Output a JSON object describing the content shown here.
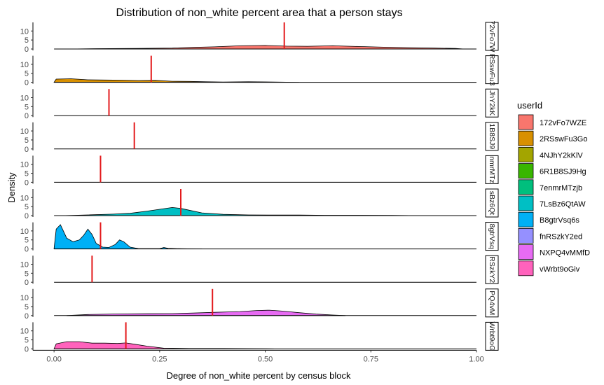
{
  "chart_data": {
    "type": "area",
    "title": "Distribution of non_white percent area that a person stays",
    "xlabel": "Degree of non_white percent by census block",
    "ylabel": "Density",
    "xlim": [
      -0.05,
      1.0
    ],
    "ylim": [
      0,
      14
    ],
    "x_ticks": [
      0.0,
      0.25,
      0.5,
      0.75,
      1.0
    ],
    "x_tick_labels": [
      "0.00",
      "0.25",
      "0.50",
      "0.75",
      "1.00"
    ],
    "y_ticks": [
      0,
      5,
      10
    ],
    "y_tick_labels": [
      "0",
      "5",
      "10"
    ],
    "legend": {
      "title": "userId",
      "position": "right"
    },
    "strip_position": "right",
    "mean_line_color": "#e31a1c",
    "series": [
      {
        "name": "172vFo7WZE",
        "strip": "72vFo7W",
        "color": "#F8766D",
        "mean": 0.545,
        "points": [
          [
            0.04,
            0
          ],
          [
            0.1,
            0.2
          ],
          [
            0.2,
            0.3
          ],
          [
            0.28,
            0.5
          ],
          [
            0.33,
            0.9
          ],
          [
            0.38,
            1.2
          ],
          [
            0.44,
            1.8
          ],
          [
            0.5,
            2.0
          ],
          [
            0.55,
            1.6
          ],
          [
            0.6,
            1.5
          ],
          [
            0.66,
            1.8
          ],
          [
            0.72,
            1.4
          ],
          [
            0.78,
            1.0
          ],
          [
            0.84,
            0.7
          ],
          [
            0.9,
            0.5
          ],
          [
            0.95,
            0.3
          ],
          [
            0.97,
            0
          ]
        ]
      },
      {
        "name": "2RSswFu3Go",
        "strip": "RSswFu3",
        "color": "#D89000",
        "mean": 0.23,
        "points": [
          [
            0.0,
            0
          ],
          [
            0.005,
            1.8
          ],
          [
            0.04,
            2.0
          ],
          [
            0.08,
            1.4
          ],
          [
            0.12,
            1.3
          ],
          [
            0.16,
            1.2
          ],
          [
            0.2,
            1.0
          ],
          [
            0.24,
            1.1
          ],
          [
            0.28,
            0.6
          ],
          [
            0.32,
            0.5
          ],
          [
            0.36,
            0.3
          ],
          [
            0.4,
            0.2
          ],
          [
            0.46,
            0.3
          ],
          [
            0.52,
            0.2
          ],
          [
            0.58,
            0
          ]
        ]
      },
      {
        "name": "4NJhY2kKlV",
        "strip": "JhY2kK",
        "color": "#A3A500",
        "mean": 0.13,
        "points": []
      },
      {
        "name": "6R1B8SJ9Hg",
        "strip": "1B8SJ9",
        "color": "#39B600",
        "mean": 0.19,
        "points": []
      },
      {
        "name": "7enmrMTzjb",
        "strip": "nmrMTz",
        "color": "#00BF7D",
        "mean": 0.11,
        "points": []
      },
      {
        "name": "7LsBz6QtAW",
        "strip": "sBz6Qt",
        "color": "#00BFC4",
        "mean": 0.3,
        "points": [
          [
            0.02,
            0
          ],
          [
            0.08,
            0.4
          ],
          [
            0.14,
            0.8
          ],
          [
            0.18,
            1.3
          ],
          [
            0.22,
            2.5
          ],
          [
            0.25,
            3.5
          ],
          [
            0.28,
            4.5
          ],
          [
            0.3,
            4.0
          ],
          [
            0.32,
            3.0
          ],
          [
            0.35,
            1.5
          ],
          [
            0.4,
            0.7
          ],
          [
            0.46,
            0.4
          ],
          [
            0.52,
            0.3
          ],
          [
            0.58,
            0.3
          ],
          [
            0.64,
            0.2
          ],
          [
            0.72,
            0.2
          ],
          [
            0.8,
            0.1
          ],
          [
            0.86,
            0
          ]
        ]
      },
      {
        "name": "B8gtrVsq6s",
        "strip": "8gtrVsq",
        "color": "#00B0F6",
        "mean": 0.11,
        "points": [
          [
            0.0,
            0
          ],
          [
            0.005,
            11.0
          ],
          [
            0.015,
            13.5
          ],
          [
            0.03,
            6.0
          ],
          [
            0.045,
            4.0
          ],
          [
            0.06,
            5.0
          ],
          [
            0.07,
            7.5
          ],
          [
            0.08,
            11.0
          ],
          [
            0.09,
            8.0
          ],
          [
            0.1,
            3.0
          ],
          [
            0.115,
            1.0
          ],
          [
            0.13,
            0.8
          ],
          [
            0.145,
            2.5
          ],
          [
            0.155,
            5.0
          ],
          [
            0.165,
            4.0
          ],
          [
            0.18,
            1.0
          ],
          [
            0.2,
            0.2
          ],
          [
            0.25,
            0.2
          ],
          [
            0.26,
            0.8
          ],
          [
            0.27,
            0.3
          ],
          [
            0.3,
            0.1
          ],
          [
            0.35,
            0
          ]
        ]
      },
      {
        "name": "fnRSzkY2ed",
        "strip": "RSzkY2",
        "color": "#9590FF",
        "mean": 0.09,
        "points": []
      },
      {
        "name": "NXPQ4vMMfD",
        "strip": "PQ4vM",
        "color": "#E76BF3",
        "mean": 0.375,
        "points": [
          [
            0.03,
            0
          ],
          [
            0.08,
            0.6
          ],
          [
            0.15,
            0.9
          ],
          [
            0.22,
            1.0
          ],
          [
            0.28,
            1.1
          ],
          [
            0.33,
            1.4
          ],
          [
            0.38,
            1.8
          ],
          [
            0.44,
            2.2
          ],
          [
            0.48,
            2.8
          ],
          [
            0.51,
            3.0
          ],
          [
            0.54,
            2.5
          ],
          [
            0.58,
            1.6
          ],
          [
            0.62,
            0.8
          ],
          [
            0.66,
            0.3
          ],
          [
            0.69,
            0
          ]
        ]
      },
      {
        "name": "vWrbt9oGiv",
        "strip": "Wrbt9oG",
        "color": "#FF62BC",
        "mean": 0.17,
        "points": [
          [
            0.0,
            0
          ],
          [
            0.005,
            2.8
          ],
          [
            0.03,
            4.0
          ],
          [
            0.06,
            4.0
          ],
          [
            0.09,
            3.2
          ],
          [
            0.12,
            3.2
          ],
          [
            0.15,
            3.0
          ],
          [
            0.17,
            3.3
          ],
          [
            0.19,
            2.6
          ],
          [
            0.22,
            1.5
          ],
          [
            0.26,
            0.4
          ],
          [
            0.32,
            0.2
          ],
          [
            0.4,
            0.2
          ],
          [
            0.46,
            0.1
          ],
          [
            0.52,
            0
          ]
        ]
      }
    ]
  }
}
